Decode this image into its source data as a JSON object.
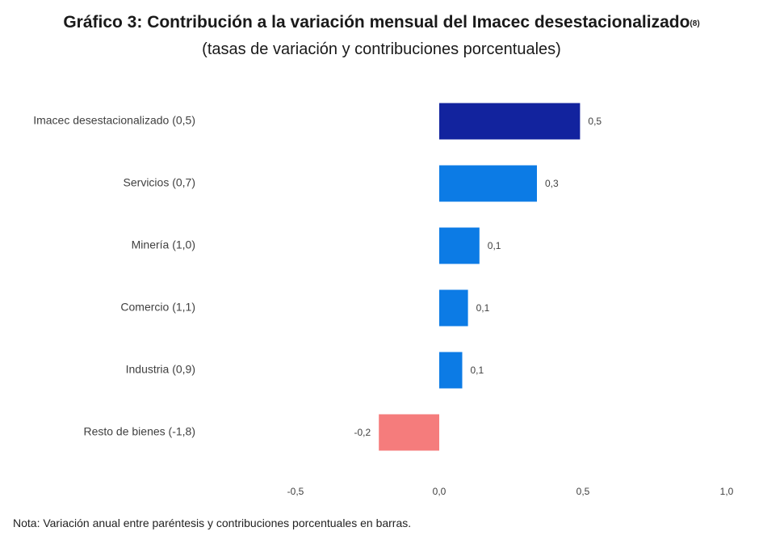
{
  "header": {
    "title": "Gráfico 3: Contribución a la variación mensual del Imacec desestacionalizado",
    "title_superscript": "(8)",
    "subtitle": "(tasas de variación y contribuciones porcentuales)"
  },
  "chart_data": {
    "type": "bar",
    "orientation": "horizontal",
    "title": "Gráfico 3: Contribución a la variación mensual del Imacec desestacionalizado",
    "subtitle": "(tasas de variación y contribuciones porcentuales)",
    "categories": [
      "Imacec desestacionalizado (0,5)",
      "Servicios (0,7)",
      "Minería (1,0)",
      "Comercio (1,1)",
      "Industria (0,9)",
      "Resto de bienes (-1,8)"
    ],
    "values": [
      0.49,
      0.34,
      0.14,
      0.1,
      0.08,
      -0.21
    ],
    "data_labels": [
      "0,5",
      "0,3",
      "0,1",
      "0,1",
      "0,1",
      "-0,2"
    ],
    "xlim": [
      -0.5,
      1.0
    ],
    "xticks": [
      -0.5,
      0.0,
      0.5,
      1.0
    ],
    "xtick_labels": [
      "-0,5",
      "0,0",
      "0,5",
      "1,0"
    ],
    "grid": false,
    "legend": "none",
    "colors": {
      "total": "#12239E",
      "positive": "#0C7BE5",
      "negative": "#F57C7C"
    }
  },
  "footer": {
    "note": "Nota: Variación anual entre paréntesis y contribuciones porcentuales en barras."
  }
}
